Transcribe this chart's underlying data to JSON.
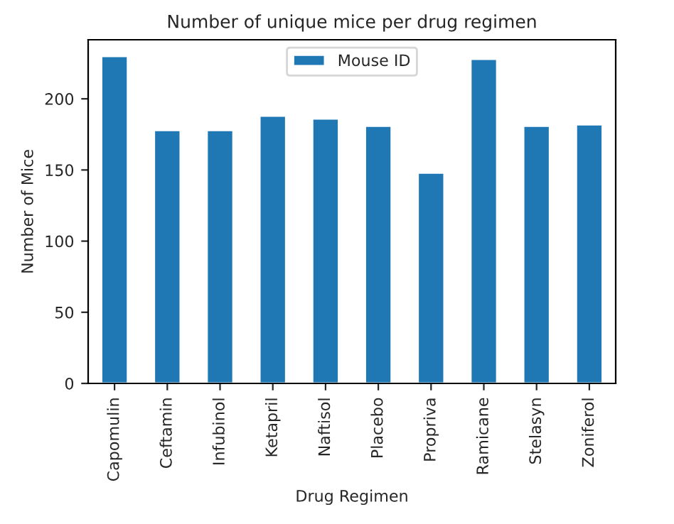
{
  "chart_data": {
    "type": "bar",
    "title": "Number of unique mice per drug regimen",
    "xlabel": "Drug Regimen",
    "ylabel": "Number of Mice",
    "categories": [
      "Capomulin",
      "Ceftamin",
      "Infubinol",
      "Ketapril",
      "Naftisol",
      "Placebo",
      "Propriva",
      "Ramicane",
      "Stelasyn",
      "Zoniferol"
    ],
    "series": [
      {
        "name": "Mouse ID",
        "color": "#1f77b4",
        "values": [
          230,
          178,
          178,
          188,
          186,
          181,
          148,
          228,
          181,
          182
        ]
      }
    ],
    "ylim": [
      0,
      241.5
    ],
    "yticks": [
      0,
      50,
      100,
      150,
      200
    ],
    "grid": false,
    "legend": "top"
  }
}
